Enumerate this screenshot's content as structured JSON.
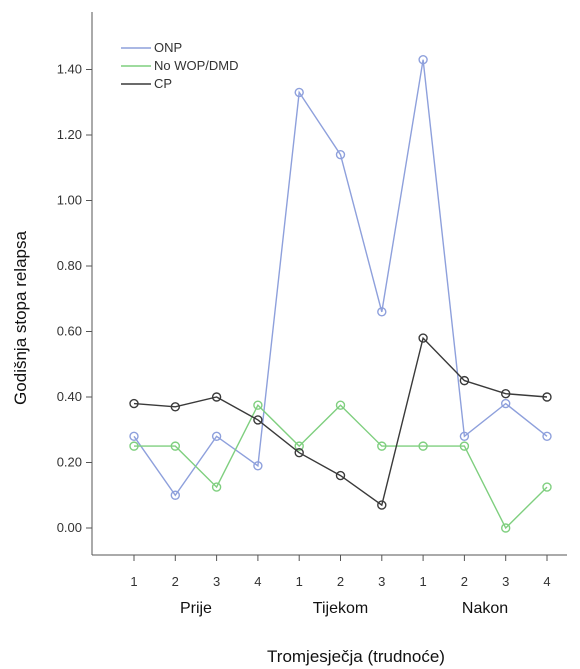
{
  "chart_data": {
    "type": "line",
    "xlabel": "Tromjesječja  (trudnoće)",
    "ylabel": "Godišnja stopa relapsa",
    "ylim": [
      0,
      1.55
    ],
    "yticks": [
      "0.00",
      "0.20",
      "0.40",
      "0.60",
      "0.80",
      "1.00",
      "1.20",
      "1.40"
    ],
    "categories": [
      "1",
      "2",
      "3",
      "4",
      "1",
      "2",
      "3",
      "1",
      "2",
      "3",
      "4"
    ],
    "groups": [
      {
        "label": "Prije",
        "span": [
          0,
          3
        ]
      },
      {
        "label": "Tijekom",
        "span": [
          4,
          6
        ]
      },
      {
        "label": "Nakon",
        "span": [
          7,
          10
        ]
      }
    ],
    "legend_position": "top-left",
    "grid": false,
    "series": [
      {
        "name": "ONP",
        "color": "#8ea0dc",
        "values": [
          0.28,
          0.1,
          0.28,
          0.19,
          1.33,
          1.14,
          0.66,
          1.43,
          0.28,
          0.38,
          0.28
        ]
      },
      {
        "name": "No WOP/DMD",
        "color": "#7fcf7f",
        "values": [
          0.25,
          0.25,
          0.125,
          0.375,
          0.25,
          0.375,
          0.25,
          0.25,
          0.25,
          0.0,
          0.125
        ]
      },
      {
        "name": "CP",
        "color": "#3a3a3a",
        "values": [
          0.38,
          0.37,
          0.4,
          0.33,
          0.23,
          0.16,
          0.07,
          0.58,
          0.45,
          0.41,
          0.4
        ]
      }
    ]
  }
}
